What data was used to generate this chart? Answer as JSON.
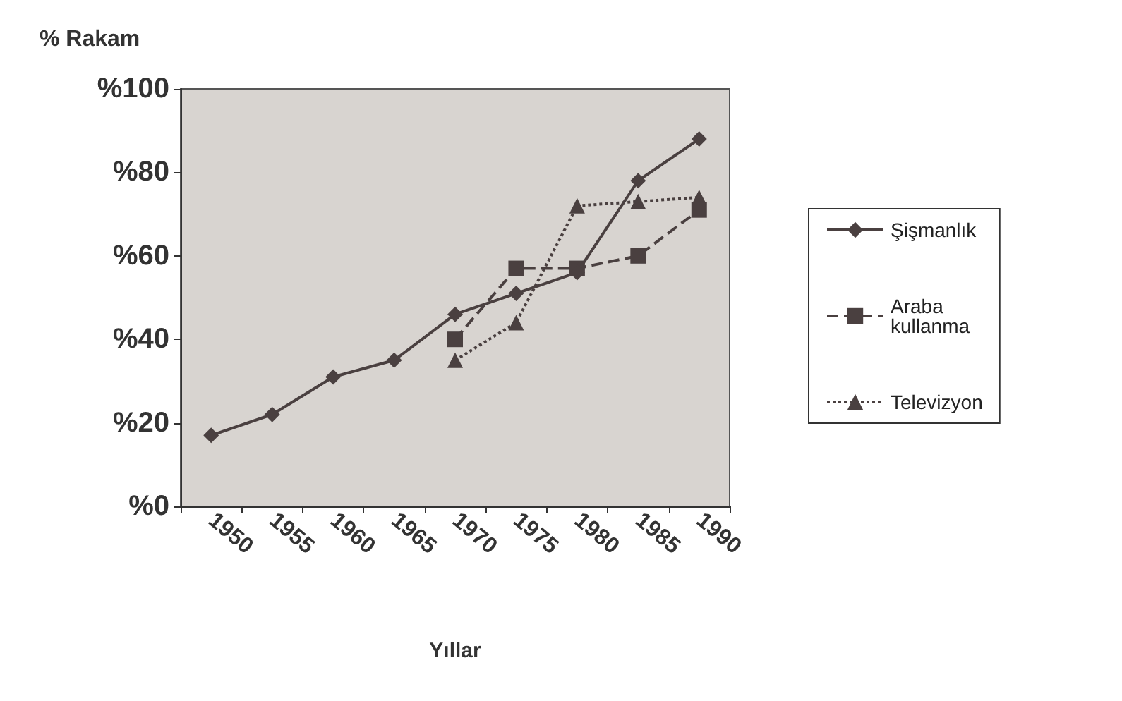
{
  "chart_data": {
    "type": "line",
    "ylabel": "% Rakam",
    "xlabel": "Yıllar",
    "categories": [
      "1950",
      "1955",
      "1960",
      "1965",
      "1970",
      "1975",
      "1980",
      "1985",
      "1990"
    ],
    "series": [
      {
        "name": "Şişmanlık",
        "color": "#4a4040",
        "marker": "diamond",
        "line_style": "solid",
        "values": [
          17,
          22,
          31,
          35,
          46,
          51,
          56,
          78,
          88
        ]
      },
      {
        "name": "Araba kullanma",
        "color": "#4a4040",
        "marker": "square",
        "line_style": "dashed",
        "values": [
          null,
          null,
          null,
          null,
          40,
          57,
          57,
          60,
          71
        ]
      },
      {
        "name": "Televizyon",
        "color": "#4a4040",
        "marker": "triangle",
        "line_style": "dotted",
        "values": [
          null,
          null,
          null,
          null,
          35,
          44,
          72,
          73,
          74
        ]
      }
    ],
    "ylim": [
      0,
      100
    ],
    "yticks": [
      {
        "value": 0,
        "label": "%0"
      },
      {
        "value": 20,
        "label": "%20"
      },
      {
        "value": 40,
        "label": "%40"
      },
      {
        "value": 60,
        "label": "%60"
      },
      {
        "value": 80,
        "label": "%80"
      },
      {
        "value": 100,
        "label": "%100"
      }
    ],
    "grid": false,
    "legend": "right"
  }
}
